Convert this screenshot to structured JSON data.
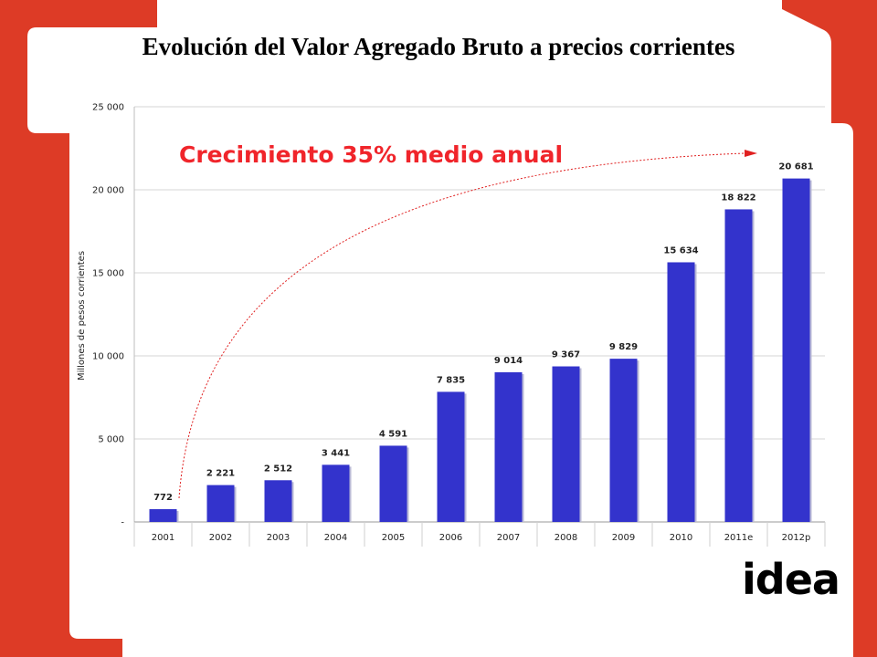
{
  "colors": {
    "background_red": "#dd3b26",
    "panel": "#ffffff",
    "bar": "#3333cc",
    "bar_shadow": "#b9b9d6",
    "arrow": "#e02020",
    "annotation": "#f0252b"
  },
  "slide": {
    "title": "Evolución del Valor Agregado Bruto a precios corrientes",
    "logo_text": "idea"
  },
  "chart_data": {
    "type": "bar",
    "categories": [
      "2001",
      "2002",
      "2003",
      "2004",
      "2005",
      "2006",
      "2007",
      "2008",
      "2009",
      "2010",
      "2011e",
      "2012p"
    ],
    "values": [
      772,
      2221,
      2512,
      3441,
      4591,
      7835,
      9014,
      9367,
      9829,
      15634,
      18822,
      20681
    ],
    "value_labels": [
      "772",
      "2 221",
      "2 512",
      "3 441",
      "4 591",
      "7 835",
      "9 014",
      "9 367",
      "9 829",
      "15 634",
      "18 822",
      "20 681"
    ],
    "ylabel": "Millones de pesos corrientes",
    "ylim": [
      0,
      25000
    ],
    "yticks": [
      0,
      5000,
      10000,
      15000,
      20000,
      25000
    ],
    "ytick_labels": [
      "-",
      "5 000",
      "10 000",
      "15 000",
      "20 000",
      "25 000"
    ],
    "grid": true,
    "annotation": "Crecimiento 35% medio anual"
  }
}
